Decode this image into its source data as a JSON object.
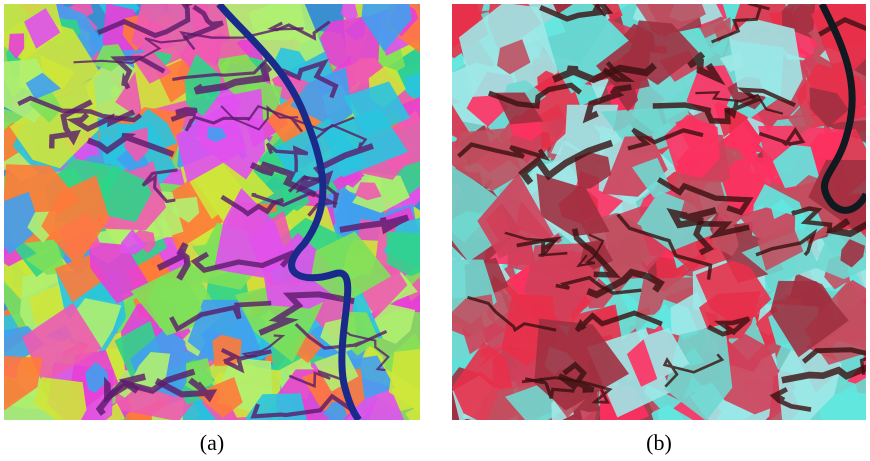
{
  "figure": {
    "panels": [
      {
        "label": "(a)"
      },
      {
        "label": "(b)"
      }
    ]
  }
}
